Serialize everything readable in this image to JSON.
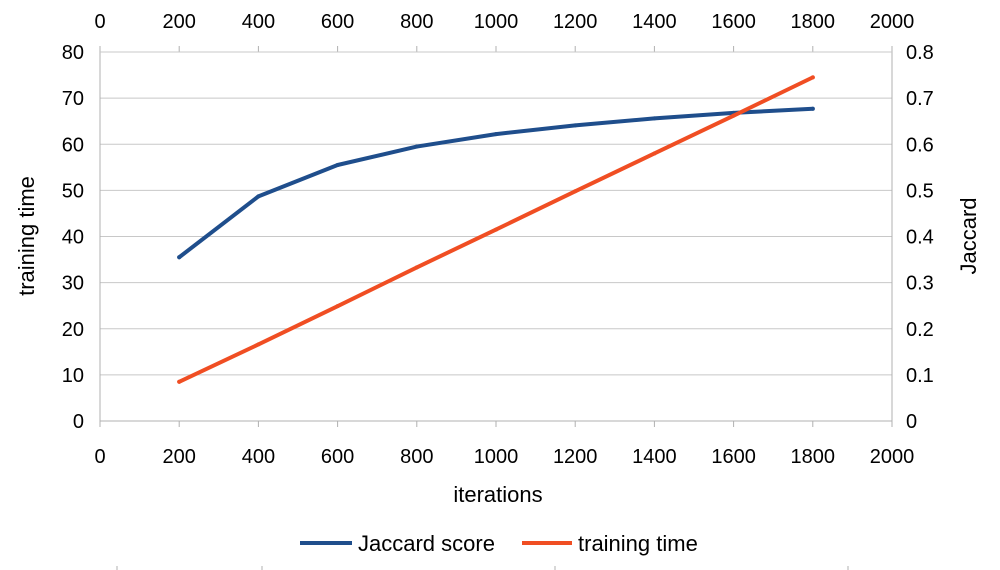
{
  "chart_data": {
    "type": "line",
    "xlabel": "iterations",
    "ylabel": "training time",
    "y2label": "Jaccard",
    "xlim": [
      0,
      2000
    ],
    "ylim": [
      0,
      80
    ],
    "y2lim": [
      0,
      0.8
    ],
    "xticks": [
      "0",
      "200",
      "400",
      "600",
      "800",
      "1000",
      "1200",
      "1400",
      "1600",
      "1800",
      "2000"
    ],
    "yticks": [
      "0",
      "10",
      "20",
      "30",
      "40",
      "50",
      "60",
      "70",
      "80"
    ],
    "y2ticks": [
      "0",
      "0.1",
      "0.2",
      "0.3",
      "0.4",
      "0.5",
      "0.6",
      "0.7",
      "0.8"
    ],
    "grid": true,
    "legend_position": "bottom",
    "series": [
      {
        "name": "Jaccard score",
        "axis": "right",
        "color": "#1f4e8c",
        "x": [
          200,
          400,
          600,
          800,
          1000,
          1200,
          1400,
          1600,
          1800
        ],
        "values": [
          0.355,
          0.487,
          0.555,
          0.595,
          0.622,
          0.641,
          0.656,
          0.668,
          0.677
        ]
      },
      {
        "name": "training time",
        "axis": "left",
        "color": "#f04e23",
        "x": [
          200,
          400,
          600,
          800,
          1000,
          1200,
          1400,
          1600,
          1800
        ],
        "values": [
          8.5,
          16.6,
          24.9,
          33.3,
          41.5,
          49.8,
          58.0,
          66.2,
          74.5
        ]
      }
    ]
  }
}
